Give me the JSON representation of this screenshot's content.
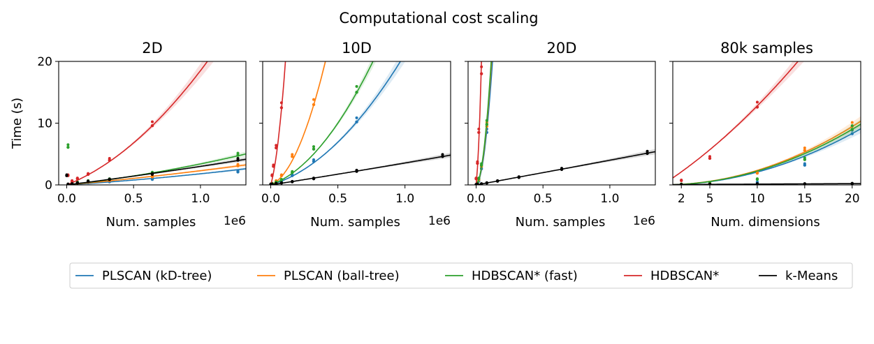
{
  "figure_title": "Computational cost scaling",
  "colors": {
    "kd": "#1f77b4",
    "ball": "#ff7f0e",
    "fast": "#2ca02c",
    "hdb": "#d62728",
    "km": "#000000"
  },
  "chart_data": [
    {
      "type": "scatter",
      "title": "2D",
      "xlabel": "Num. samples",
      "ylabel": "Time (s)",
      "offset_label": "1e6",
      "xlim": [
        -0.06,
        1.34
      ],
      "ylim": [
        0,
        20
      ],
      "xticks": [
        0,
        0.5,
        1.0
      ],
      "xtick_labels": [
        "0.0",
        "0.5",
        "1.0"
      ],
      "yticks": [
        0,
        10,
        20
      ],
      "ytick_labels": [
        "0",
        "10",
        "20"
      ],
      "series": [
        {
          "key": "kd",
          "name": "PLSCAN (kD-tree)",
          "x": [
            0.01,
            0.04,
            0.08,
            0.16,
            0.32,
            0.64,
            1.28
          ],
          "y": [
            0.05,
            0.1,
            0.2,
            0.35,
            0.5,
            0.9,
            2.1
          ],
          "fit_coef": [
            0,
            1.35,
            0.45
          ]
        },
        {
          "key": "ball",
          "name": "PLSCAN (ball-tree)",
          "x": [
            0.01,
            0.04,
            0.08,
            0.16,
            0.32,
            0.64,
            1.28
          ],
          "y": [
            0.06,
            0.15,
            0.3,
            0.45,
            0.7,
            1.3,
            3.1
          ],
          "fit_coef": [
            0,
            1.95,
            0.35
          ]
        },
        {
          "key": "fast",
          "name": "HDBSCAN* (fast)",
          "x": [
            0.01,
            0.04,
            0.08,
            0.16,
            0.32,
            0.64,
            1.28
          ],
          "y": [
            6.1,
            0.25,
            0.4,
            0.6,
            0.9,
            1.9,
            4.8
          ],
          "fit_coef": [
            0,
            2.4,
            1.0
          ]
        },
        {
          "key": "hdb",
          "name": "HDBSCAN*",
          "x": [
            0.01,
            0.04,
            0.08,
            0.16,
            0.32,
            0.64
          ],
          "y": [
            1.5,
            0.6,
            1.0,
            1.7,
            4.0,
            9.6
          ],
          "fit_coef": [
            0,
            8.7,
            9.8
          ]
        },
        {
          "key": "km",
          "name": "k-Means",
          "x": [
            0.0,
            0.01,
            0.04,
            0.08,
            0.16,
            0.32,
            0.64,
            1.28
          ],
          "y": [
            1.5,
            0.1,
            0.15,
            0.3,
            0.55,
            0.85,
            1.7,
            4.0
          ],
          "fit_coef": [
            0,
            2.7,
            0.3
          ]
        }
      ]
    },
    {
      "type": "scatter",
      "title": "10D",
      "xlabel": "Num. samples",
      "ylabel": "",
      "offset_label": "1e6",
      "xlim": [
        -0.06,
        1.34
      ],
      "ylim": [
        0,
        20
      ],
      "xticks": [
        0,
        0.5,
        1.0
      ],
      "xtick_labels": [
        "0.0",
        "0.5",
        "1.0"
      ],
      "yticks": [
        0,
        10,
        20
      ],
      "ytick_labels": [
        "",
        "",
        ""
      ],
      "series": [
        {
          "key": "kd",
          "name": "PLSCAN (kD-tree)",
          "x": [
            0.01,
            0.04,
            0.08,
            0.16,
            0.32,
            0.64
          ],
          "y": [
            0.1,
            0.3,
            0.6,
            1.5,
            3.8,
            10.2
          ],
          "fit_coef": [
            0,
            6.5,
            14.7
          ]
        },
        {
          "key": "ball",
          "name": "PLSCAN (ball-tree)",
          "x": [
            0.01,
            0.04,
            0.08,
            0.16,
            0.32
          ],
          "y": [
            0.2,
            0.6,
            1.5,
            4.6,
            13.0
          ],
          "fit_coef": [
            0,
            8.8,
            99.0
          ]
        },
        {
          "key": "fast",
          "name": "HDBSCAN* (fast)",
          "x": [
            0.01,
            0.04,
            0.08,
            0.16,
            0.32,
            0.64
          ],
          "y": [
            0.2,
            0.4,
            0.8,
            2.0,
            5.8,
            15.0
          ],
          "fit_coef": [
            0,
            8.0,
            24.0
          ]
        },
        {
          "key": "hdb",
          "name": "HDBSCAN*",
          "x": [
            0.01,
            0.02,
            0.04,
            0.08
          ],
          "y": [
            1.5,
            3.0,
            6.0,
            12.5
          ],
          "fit_coef": [
            0,
            75.0,
            980.0
          ]
        },
        {
          "key": "km",
          "name": "k-Means",
          "x": [
            0.0,
            0.01,
            0.04,
            0.08,
            0.16,
            0.32,
            0.64,
            1.28
          ],
          "y": [
            0.1,
            0.1,
            0.2,
            0.3,
            0.5,
            1.0,
            2.2,
            4.6
          ],
          "fit_coef": [
            0,
            3.4,
            0.15
          ]
        }
      ]
    },
    {
      "type": "scatter",
      "title": "20D",
      "xlabel": "Num. samples",
      "ylabel": "",
      "offset_label": "1e6",
      "xlim": [
        -0.06,
        1.34
      ],
      "ylim": [
        0,
        20
      ],
      "xticks": [
        0,
        0.5,
        1.0
      ],
      "xtick_labels": [
        "0.0",
        "0.5",
        "1.0"
      ],
      "yticks": [
        0,
        10,
        20
      ],
      "ytick_labels": [
        "",
        "",
        ""
      ],
      "series": [
        {
          "key": "kd",
          "name": "PLSCAN (kD-tree)",
          "x": [
            0.01,
            0.02,
            0.04,
            0.08
          ],
          "y": [
            0.2,
            0.6,
            2.6,
            8.5
          ],
          "fit_coef": [
            0,
            10.0,
            1250.0
          ]
        },
        {
          "key": "ball",
          "name": "PLSCAN (ball-tree)",
          "x": [
            0.01,
            0.02,
            0.04,
            0.08
          ],
          "y": [
            0.3,
            0.8,
            3.0,
            9.5
          ],
          "fit_coef": [
            0,
            12.0,
            1400.0
          ]
        },
        {
          "key": "fast",
          "name": "HDBSCAN* (fast)",
          "x": [
            0.01,
            0.02,
            0.04,
            0.08
          ],
          "y": [
            0.3,
            1.0,
            3.2,
            9.8
          ],
          "fit_coef": [
            0,
            14.0,
            1450.0
          ]
        },
        {
          "key": "hdb",
          "name": "HDBSCAN*",
          "x": [
            0.0,
            0.01,
            0.02,
            0.04
          ],
          "y": [
            1.0,
            3.5,
            8.5,
            18.0
          ],
          "fit_coef": [
            0,
            200.0,
            7500.0
          ]
        },
        {
          "key": "km",
          "name": "k-Means",
          "x": [
            0.0,
            0.01,
            0.04,
            0.08,
            0.16,
            0.32,
            0.64,
            1.28
          ],
          "y": [
            0.05,
            0.1,
            0.15,
            0.3,
            0.6,
            1.2,
            2.5,
            5.1
          ],
          "fit_coef": [
            0,
            3.95,
            0.05
          ]
        }
      ]
    },
    {
      "type": "scatter",
      "title": "80k samples",
      "xlabel": "Num. dimensions",
      "ylabel": "",
      "offset_label": "",
      "xlim": [
        1.1,
        20.9
      ],
      "ylim": [
        0,
        20
      ],
      "xticks": [
        2,
        5,
        10,
        15,
        20
      ],
      "xtick_labels": [
        "2",
        "5",
        "10",
        "15",
        "20"
      ],
      "yticks": [
        0,
        10,
        20
      ],
      "ytick_labels": [
        "",
        "",
        ""
      ],
      "series": [
        {
          "key": "kd",
          "name": "PLSCAN (kD-tree)",
          "x": [
            2,
            5,
            10,
            15,
            20
          ],
          "y": [
            0.05,
            0.15,
            0.4,
            3.2,
            8.3
          ],
          "fit_coef": [
            0,
            0,
            0.0208
          ]
        },
        {
          "key": "ball",
          "name": "PLSCAN (ball-tree)",
          "x": [
            2,
            5,
            10,
            15,
            20
          ],
          "y": [
            0.1,
            0.3,
            1.9,
            5.6,
            9.5
          ],
          "fit_coef": [
            0,
            0,
            0.0236
          ]
        },
        {
          "key": "fast",
          "name": "HDBSCAN* (fast)",
          "x": [
            2,
            5,
            10,
            15,
            20
          ],
          "y": [
            0.1,
            0.25,
            0.9,
            4.1,
            9.0
          ],
          "fit_coef": [
            0,
            0,
            0.0225
          ]
        },
        {
          "key": "hdb",
          "name": "HDBSCAN*",
          "x": [
            2,
            5,
            10
          ],
          "y": [
            0.7,
            4.3,
            12.6
          ],
          "fit_coef": [
            0,
            1.0,
            0.028
          ]
        },
        {
          "key": "km",
          "name": "k-Means",
          "x": [
            2,
            5,
            10,
            15,
            20
          ],
          "y": [
            0.05,
            0.1,
            0.15,
            0.15,
            0.2
          ],
          "fit_coef": [
            0.05,
            0.008,
            0
          ]
        }
      ]
    }
  ],
  "legend": {
    "placement": "bottom-center",
    "items": [
      {
        "key": "kd",
        "label": "PLSCAN (kD-tree)"
      },
      {
        "key": "ball",
        "label": "PLSCAN (ball-tree)"
      },
      {
        "key": "fast",
        "label": "HDBSCAN* (fast)"
      },
      {
        "key": "hdb",
        "label": "HDBSCAN*"
      },
      {
        "key": "km",
        "label": "k-Means"
      }
    ]
  }
}
